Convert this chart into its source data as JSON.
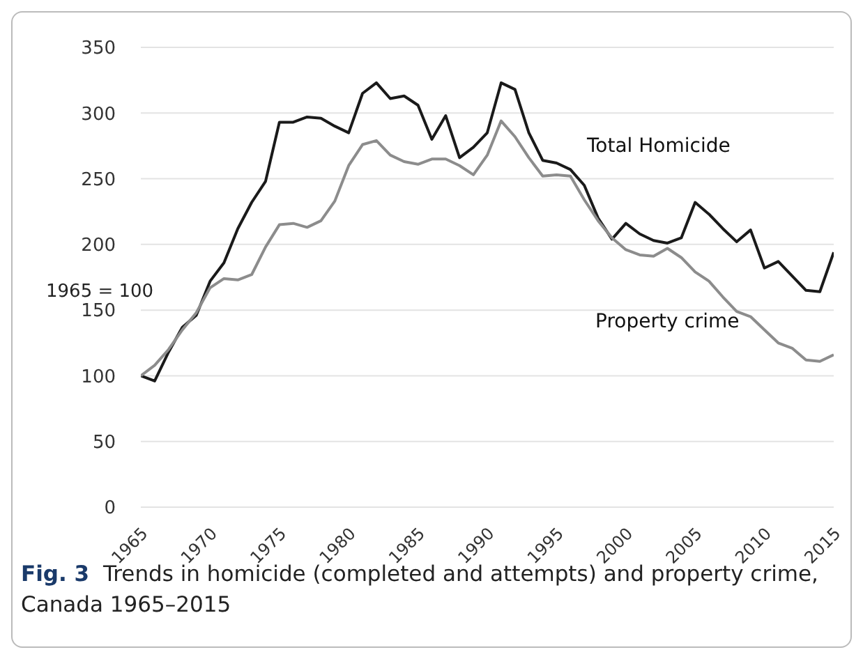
{
  "chart_data": {
    "type": "line",
    "ylabel": "1965 = 100",
    "annotations": [
      "Fig. 3",
      "Trends in homicide (completed and attempts) and property crime, Canada 1965–2015"
    ],
    "x": [
      1965,
      1966,
      1967,
      1968,
      1969,
      1970,
      1971,
      1972,
      1973,
      1974,
      1975,
      1976,
      1977,
      1978,
      1979,
      1980,
      1981,
      1982,
      1983,
      1984,
      1985,
      1986,
      1987,
      1988,
      1989,
      1990,
      1991,
      1992,
      1993,
      1994,
      1995,
      1996,
      1997,
      1998,
      1999,
      2000,
      2001,
      2002,
      2003,
      2004,
      2005,
      2006,
      2007,
      2008,
      2009,
      2010,
      2011,
      2012,
      2013,
      2014,
      2015
    ],
    "series": [
      {
        "name": "Total Homicide",
        "color": "#1a1a1a",
        "values": [
          100,
          96,
          118,
          137,
          146,
          172,
          186,
          212,
          232,
          248,
          293,
          293,
          297,
          296,
          290,
          285,
          315,
          323,
          311,
          313,
          306,
          280,
          298,
          266,
          274,
          285,
          323,
          318,
          285,
          264,
          262,
          257,
          245,
          220,
          204,
          216,
          208,
          203,
          201,
          205,
          232,
          223,
          212,
          202,
          211,
          182,
          187,
          176,
          165,
          164,
          194
        ]
      },
      {
        "name": "Property crime",
        "color": "#8c8c8c",
        "values": [
          100,
          108,
          120,
          135,
          148,
          167,
          174,
          173,
          177,
          198,
          215,
          216,
          213,
          218,
          233,
          260,
          276,
          279,
          268,
          263,
          261,
          265,
          265,
          260,
          253,
          268,
          294,
          282,
          266,
          252,
          253,
          252,
          234,
          218,
          205,
          196,
          192,
          191,
          197,
          190,
          179,
          172,
          160,
          149,
          145,
          135,
          125,
          121,
          112,
          111,
          116
        ]
      }
    ],
    "xlim": [
      1965,
      2015
    ],
    "xticks": [
      1965,
      1970,
      1975,
      1980,
      1985,
      1990,
      1995,
      2000,
      2005,
      2010,
      2015
    ],
    "ylim": [
      0,
      350
    ],
    "yticks": [
      0,
      50,
      100,
      150,
      200,
      250,
      300,
      350
    ],
    "grid": "y",
    "legend": false,
    "marker": "none",
    "line_style": "solid"
  }
}
